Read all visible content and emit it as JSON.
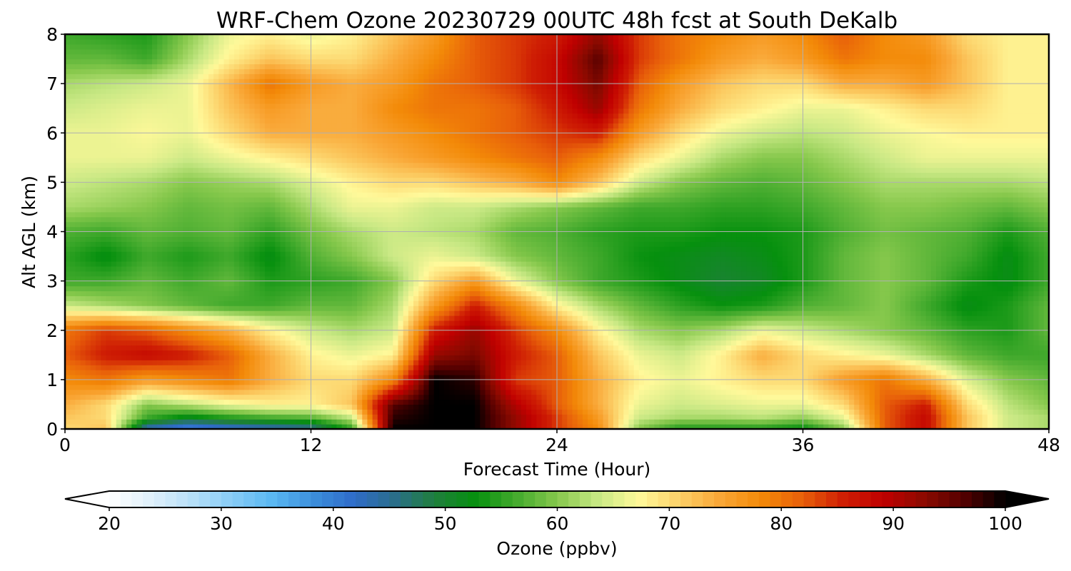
{
  "chart_data": {
    "type": "heatmap",
    "title": "WRF-Chem Ozone  20230729 00UTC 48h fcst at South DeKalb",
    "xlabel": "Forecast Time (Hour)",
    "ylabel": "Alt AGL (km)",
    "xlim": [
      0,
      48
    ],
    "ylim": [
      0,
      8
    ],
    "x_ticks": [
      "0",
      "12",
      "24",
      "36",
      "48"
    ],
    "y_ticks": [
      "0",
      "1",
      "2",
      "3",
      "4",
      "5",
      "6",
      "7",
      "8"
    ],
    "grid": true,
    "colorbar": {
      "label": "Ozone  (ppbv)",
      "range": [
        20,
        100
      ],
      "ticks": [
        "20",
        "30",
        "40",
        "50",
        "60",
        "70",
        "80",
        "90",
        "100"
      ],
      "extend": "both",
      "colors": [
        "#ffffff",
        "#e0f0fb",
        "#b8e0f8",
        "#88ccf6",
        "#5ab8f2",
        "#3c8fdc",
        "#2f6cc9",
        "#2a6e8a",
        "#1f7f3c",
        "#06900e",
        "#45ab2e",
        "#86c84c",
        "#c8e884",
        "#fff99a",
        "#fcd068",
        "#f9a636",
        "#f38a08",
        "#e8600a",
        "#cf1f04",
        "#c00000",
        "#8c0a00",
        "#520000",
        "#000000"
      ]
    },
    "x_hours": [
      0,
      2,
      4,
      6,
      8,
      10,
      12,
      14,
      16,
      18,
      20,
      22,
      24,
      26,
      28,
      30,
      32,
      34,
      36,
      38,
      40,
      42,
      44,
      46,
      48
    ],
    "z_altitudes_km": [
      0,
      0.25,
      0.5,
      1,
      1.5,
      2,
      2.5,
      3,
      3.5,
      4,
      4.5,
      5,
      5.5,
      6,
      6.5,
      7,
      7.5,
      8
    ],
    "ozone_ppbv": [
      [
        70,
        72,
        42,
        38,
        40,
        42,
        44,
        55,
        100,
        100,
        100,
        92,
        84,
        78,
        60,
        54,
        54,
        54,
        52,
        60,
        82,
        88,
        72,
        64,
        62
      ],
      [
        72,
        70,
        56,
        52,
        55,
        57,
        58,
        64,
        98,
        100,
        100,
        92,
        84,
        76,
        64,
        62,
        62,
        63,
        61,
        66,
        82,
        88,
        72,
        64,
        62
      ],
      [
        74,
        70,
        60,
        63,
        66,
        68,
        68,
        72,
        96,
        100,
        100,
        90,
        82,
        74,
        66,
        64,
        65,
        66,
        66,
        70,
        82,
        86,
        70,
        63,
        60
      ],
      [
        78,
        80,
        76,
        78,
        80,
        74,
        70,
        70,
        78,
        100,
        98,
        84,
        82,
        74,
        68,
        66,
        68,
        70,
        70,
        76,
        80,
        74,
        65,
        60,
        58
      ],
      [
        82,
        86,
        88,
        86,
        82,
        74,
        68,
        66,
        68,
        92,
        94,
        86,
        82,
        72,
        66,
        64,
        68,
        74,
        70,
        68,
        66,
        62,
        58,
        56,
        56
      ],
      [
        80,
        84,
        82,
        78,
        74,
        68,
        64,
        62,
        64,
        86,
        92,
        84,
        78,
        68,
        62,
        60,
        62,
        66,
        64,
        62,
        60,
        58,
        55,
        54,
        58
      ],
      [
        64,
        62,
        60,
        58,
        56,
        56,
        58,
        58,
        62,
        76,
        86,
        78,
        68,
        62,
        58,
        55,
        53,
        54,
        57,
        58,
        60,
        56,
        52,
        54,
        58
      ],
      [
        56,
        56,
        58,
        56,
        58,
        54,
        55,
        56,
        60,
        70,
        76,
        66,
        60,
        56,
        54,
        52,
        50,
        51,
        54,
        58,
        60,
        58,
        54,
        52,
        56
      ],
      [
        55,
        52,
        56,
        54,
        56,
        52,
        57,
        60,
        64,
        66,
        64,
        60,
        58,
        56,
        53,
        52,
        51,
        52,
        54,
        58,
        60,
        58,
        56,
        52,
        56
      ],
      [
        57,
        56,
        58,
        57,
        58,
        55,
        59,
        62,
        64,
        63,
        62,
        58,
        57,
        55,
        54,
        54,
        53,
        53,
        54,
        57,
        59,
        58,
        57,
        54,
        57
      ],
      [
        62,
        61,
        60,
        58,
        59,
        58,
        62,
        66,
        66,
        64,
        64,
        62,
        60,
        58,
        56,
        56,
        55,
        55,
        56,
        58,
        60,
        60,
        59,
        58,
        60
      ],
      [
        64,
        63,
        62,
        60,
        61,
        62,
        65,
        68,
        70,
        70,
        72,
        74,
        78,
        72,
        64,
        60,
        58,
        57,
        58,
        60,
        62,
        62,
        62,
        62,
        63
      ],
      [
        66,
        66,
        66,
        64,
        66,
        68,
        70,
        72,
        74,
        76,
        78,
        80,
        82,
        78,
        70,
        66,
        62,
        60,
        60,
        62,
        64,
        66,
        66,
        66,
        66
      ],
      [
        66,
        66,
        67,
        66,
        70,
        74,
        74,
        74,
        76,
        78,
        80,
        82,
        84,
        86,
        76,
        70,
        66,
        64,
        63,
        64,
        66,
        67,
        68,
        68,
        68
      ],
      [
        64,
        65,
        66,
        66,
        72,
        76,
        74,
        74,
        78,
        80,
        80,
        82,
        86,
        92,
        80,
        74,
        70,
        68,
        66,
        66,
        68,
        70,
        70,
        68,
        68
      ],
      [
        62,
        63,
        64,
        66,
        73,
        80,
        76,
        74,
        76,
        80,
        82,
        84,
        88,
        94,
        82,
        76,
        72,
        70,
        70,
        74,
        74,
        76,
        72,
        68,
        68
      ],
      [
        58,
        58,
        56,
        62,
        68,
        72,
        70,
        70,
        74,
        78,
        82,
        84,
        88,
        96,
        84,
        80,
        76,
        74,
        76,
        80,
        78,
        78,
        72,
        68,
        68
      ],
      [
        56,
        55,
        54,
        60,
        66,
        68,
        66,
        68,
        72,
        76,
        82,
        84,
        86,
        92,
        84,
        80,
        78,
        76,
        78,
        82,
        78,
        76,
        70,
        68,
        68
      ]
    ]
  }
}
